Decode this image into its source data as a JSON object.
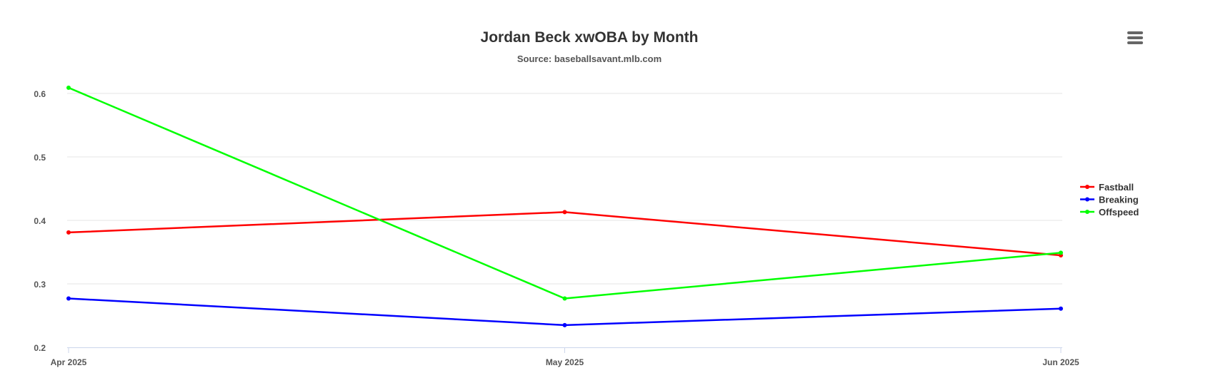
{
  "chart_data": {
    "type": "line",
    "title": "Jordan Beck xwOBA by Month",
    "subtitle": "Source: baseballsavant.mlb.com",
    "categories": [
      "Apr 2025",
      "May 2025",
      "Jun 2025"
    ],
    "ylim": [
      0.2,
      0.6
    ],
    "yticks": [
      0.2,
      0.3,
      0.4,
      0.5,
      0.6
    ],
    "grid": true,
    "legend_position": "right",
    "series": [
      {
        "name": "Fastball",
        "color": "#ff0000",
        "values": [
          0.381,
          0.413,
          0.345
        ]
      },
      {
        "name": "Breaking",
        "color": "#0000ff",
        "values": [
          0.277,
          0.235,
          0.261
        ]
      },
      {
        "name": "Offspeed",
        "color": "#00ff00",
        "values": [
          0.609,
          0.277,
          0.349
        ]
      }
    ]
  },
  "menu_icon": "hamburger-menu-icon"
}
